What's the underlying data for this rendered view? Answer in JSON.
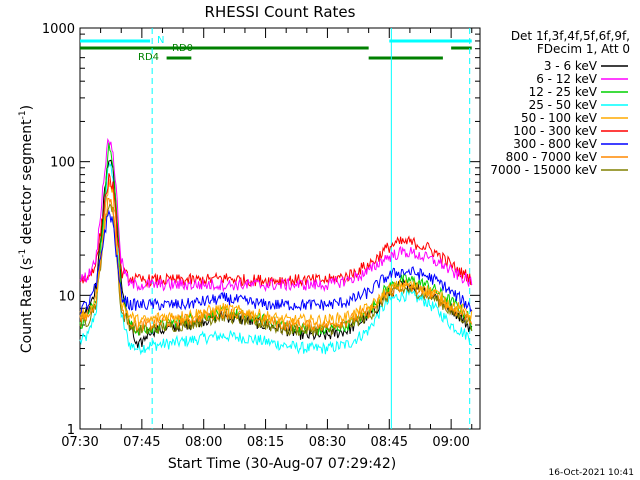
{
  "chart_data": {
    "type": "line",
    "title": "RHESSI Count Rates",
    "xlabel": "Start Time (30-Aug-07 07:29:42)",
    "ylabel_main": "Count Rate (s",
    "ylabel_sup1": "-1",
    "ylabel_mid": " detector segment",
    "ylabel_sup2": "-1",
    "ylabel_end": ")",
    "y_scale": "log",
    "ylim": [
      1,
      1000
    ],
    "xlim": [
      "07:30",
      "09:07"
    ],
    "x_ticks": [
      "07:30",
      "07:45",
      "08:00",
      "08:15",
      "08:30",
      "08:45",
      "09:00"
    ],
    "y_ticks": [
      "1",
      "10",
      "100",
      "1000"
    ],
    "legend_header": [
      "Det 1f,3f,4f,5f,6f,9f,",
      "FDecim 1, Att 0"
    ],
    "legend_position": "right",
    "timestamp": "16-Oct-2021 10:41",
    "x_sample_minutes": [
      0,
      2,
      4,
      6,
      7,
      8,
      9,
      10,
      12,
      14,
      17,
      20,
      25,
      30,
      35,
      40,
      45,
      50,
      55,
      60,
      65,
      70,
      72,
      74,
      76,
      78,
      80,
      82,
      84,
      86,
      88,
      90,
      92,
      94,
      95
    ],
    "x_sample_times": [
      "07:30",
      "07:32",
      "07:34",
      "07:36",
      "07:37",
      "07:38",
      "07:39",
      "07:40",
      "07:42",
      "07:44",
      "07:47",
      "07:50",
      "07:55",
      "08:00",
      "08:05",
      "08:10",
      "08:15",
      "08:20",
      "08:25",
      "08:30",
      "08:35",
      "08:40",
      "08:42",
      "08:44",
      "08:46",
      "08:48",
      "08:50",
      "08:52",
      "08:54",
      "08:56",
      "08:58",
      "09:00",
      "09:02",
      "09:04",
      "09:05"
    ],
    "series": [
      {
        "name": "3 - 6 keV",
        "color": "#000000",
        "values": [
          7,
          8,
          12,
          60,
          110,
          90,
          35,
          12,
          6,
          4,
          5.5,
          5.5,
          6,
          6.5,
          7,
          6.5,
          6,
          5.5,
          5,
          5,
          5.5,
          7,
          8,
          10,
          11,
          12,
          12,
          11.5,
          11,
          10,
          9,
          8,
          7,
          6,
          5.5
        ]
      },
      {
        "name": "6 - 12 keV",
        "color": "#ff00ff",
        "values": [
          13,
          14,
          20,
          90,
          150,
          120,
          50,
          18,
          12,
          12,
          12,
          12,
          12,
          12,
          12,
          12,
          12,
          12,
          12,
          12,
          13,
          15,
          17,
          19,
          20,
          21,
          21,
          20,
          19,
          18,
          17,
          15,
          14,
          13,
          12
        ]
      },
      {
        "name": "12 - 25 keV",
        "color": "#00d000",
        "values": [
          6,
          7,
          10,
          55,
          130,
          100,
          40,
          11,
          6,
          5.5,
          5.5,
          6,
          6.5,
          7,
          7.5,
          7,
          6.5,
          6,
          5.5,
          5.5,
          6,
          7.5,
          9,
          11,
          12,
          13,
          13,
          12.5,
          12,
          11,
          10,
          9,
          8,
          7,
          6
        ]
      },
      {
        "name": "25 - 50 keV",
        "color": "#00ffff",
        "values": [
          4.5,
          5,
          8,
          45,
          100,
          80,
          30,
          7,
          4.3,
          4,
          4.2,
          4.3,
          4.5,
          4.8,
          5,
          4.8,
          4.5,
          4.2,
          4,
          4,
          4.3,
          5.5,
          7,
          8.5,
          9.5,
          10,
          10,
          9.5,
          9,
          8,
          7,
          6,
          5.5,
          5,
          4.5
        ]
      },
      {
        "name": "50 - 100 keV",
        "color": "#ffaa00",
        "values": [
          7,
          7.5,
          10,
          40,
          70,
          60,
          25,
          9,
          7,
          6.5,
          6.5,
          7,
          7,
          7.5,
          8,
          7.5,
          7,
          6.5,
          6.5,
          6.5,
          7,
          8,
          9,
          10.5,
          11.5,
          12,
          12,
          11.5,
          11,
          10.5,
          9.5,
          8.5,
          8,
          7.5,
          7
        ]
      },
      {
        "name": "100 - 300 keV",
        "color": "#ff0000",
        "values": [
          13,
          13.5,
          18,
          50,
          75,
          65,
          30,
          15,
          13.5,
          13,
          13,
          13,
          13,
          13,
          13.5,
          13,
          13,
          13,
          13,
          13,
          14,
          17,
          19,
          22,
          24,
          25,
          25,
          24,
          23,
          21,
          19,
          17,
          15,
          14,
          13
        ]
      },
      {
        "name": "300 - 800 keV",
        "color": "#0000ff",
        "values": [
          8,
          8.5,
          12,
          30,
          42,
          35,
          18,
          10,
          8.5,
          8.5,
          8.5,
          8.5,
          8.5,
          9,
          9.5,
          9,
          8.5,
          8.5,
          8.5,
          8.5,
          9,
          10.5,
          12,
          13.5,
          14.5,
          15,
          15,
          14.5,
          14,
          13,
          12,
          10.5,
          9.5,
          8.5,
          8
        ]
      },
      {
        "name": "800 - 7000 keV",
        "color": "#ff8800",
        "values": [
          6.5,
          7,
          9.5,
          35,
          55,
          45,
          20,
          8,
          6.5,
          6,
          6,
          6.3,
          6.5,
          7,
          7.5,
          7,
          6.5,
          6,
          6,
          6,
          6.5,
          7.5,
          8.5,
          10,
          11,
          11.5,
          11.5,
          11,
          10.5,
          10,
          9,
          8,
          7.5,
          7,
          6.5
        ]
      },
      {
        "name": "7000 - 15000 keV",
        "color": "#808000",
        "values": [
          6,
          6.5,
          9,
          33,
          50,
          42,
          18,
          7.5,
          6,
          5.5,
          5.5,
          5.8,
          6,
          6.5,
          7,
          6.5,
          6,
          5.5,
          5.5,
          5.5,
          6,
          7,
          8,
          9.5,
          10.5,
          11,
          11,
          10.5,
          10,
          9.5,
          8.5,
          7.5,
          7,
          6.5,
          6
        ]
      }
    ],
    "annotations": [
      {
        "label": "N",
        "color": "#00ffff"
      },
      {
        "label": "RD0",
        "color": "#008000"
      },
      {
        "label": "RD4",
        "color": "#008000"
      }
    ],
    "attenuator_bars": [
      {
        "color": "#00ffff",
        "segments_minutes": [
          [
            0,
            17
          ],
          [
            75,
            95
          ]
        ]
      },
      {
        "color": "#008000",
        "segments_minutes": [
          [
            0,
            70
          ],
          [
            90,
            95
          ]
        ]
      },
      {
        "color": "#008000",
        "segments_minutes": [
          [
            21,
            27
          ],
          [
            70,
            88
          ]
        ]
      }
    ],
    "markers_minutes": [
      {
        "at": 17.5,
        "style": "dashed",
        "color": "#00ffff"
      },
      {
        "at": 75.5,
        "style": "solid",
        "color": "#00ffff"
      },
      {
        "at": 94.5,
        "style": "dashed",
        "color": "#00ffff"
      }
    ]
  }
}
